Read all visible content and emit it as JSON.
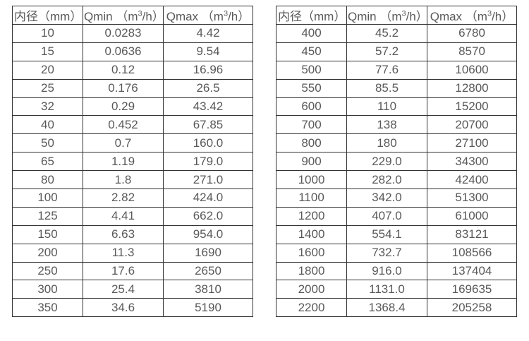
{
  "tables": [
    {
      "name": "small-diameter-flow-table",
      "headers": [
        {
          "text": "内径（mm）"
        },
        {
          "pre": "Qmin （m",
          "sup": "3",
          "post": "/h）"
        },
        {
          "pre": "Qmax （m",
          "sup": "3",
          "post": "/h）"
        }
      ],
      "rows": [
        [
          "10",
          "0.0283",
          "4.42"
        ],
        [
          "15",
          "0.0636",
          "9.54"
        ],
        [
          "20",
          "0.12",
          "16.96"
        ],
        [
          "25",
          "0.176",
          "26.5"
        ],
        [
          "32",
          "0.29",
          "43.42"
        ],
        [
          "40",
          "0.452",
          "67.85"
        ],
        [
          "50",
          "0.7",
          "160.0"
        ],
        [
          "65",
          "1.19",
          "179.0"
        ],
        [
          "80",
          "1.8",
          "271.0"
        ],
        [
          "100",
          "2.82",
          "424.0"
        ],
        [
          "125",
          "4.41",
          "662.0"
        ],
        [
          "150",
          "6.63",
          "954.0"
        ],
        [
          "200",
          "11.3",
          "1690"
        ],
        [
          "250",
          "17.6",
          "2650"
        ],
        [
          "300",
          "25.4",
          "3810"
        ],
        [
          "350",
          "34.6",
          "5190"
        ]
      ]
    },
    {
      "name": "large-diameter-flow-table",
      "headers": [
        {
          "text": "内径（mm）"
        },
        {
          "pre": "Qmin （m",
          "sup": "3",
          "post": "/h）"
        },
        {
          "pre": "Qmax （m",
          "sup": "3",
          "post": "/h）"
        }
      ],
      "rows": [
        [
          "400",
          "45.2",
          "6780"
        ],
        [
          "450",
          "57.2",
          "8570"
        ],
        [
          "500",
          "77.6",
          "10600"
        ],
        [
          "550",
          "85.5",
          "12800"
        ],
        [
          "600",
          "110",
          "15200"
        ],
        [
          "700",
          "138",
          "20700"
        ],
        [
          "800",
          "180",
          "27100"
        ],
        [
          "900",
          "229.0",
          "34300"
        ],
        [
          "1000",
          "282.0",
          "42400"
        ],
        [
          "1100",
          "342.0",
          "51300"
        ],
        [
          "1200",
          "407.0",
          "61000"
        ],
        [
          "1400",
          "554.1",
          "83121"
        ],
        [
          "1600",
          "732.7",
          "108566"
        ],
        [
          "1800",
          "916.0",
          "137404"
        ],
        [
          "2000",
          "1131.0",
          "169635"
        ],
        [
          "2200",
          "1368.4",
          "205258"
        ]
      ]
    }
  ],
  "colors": {
    "border": "#333333",
    "text": "#595959",
    "background": "#ffffff"
  },
  "column_semantics": [
    "inner-diameter-mm",
    "qmin-m3h",
    "qmax-m3h"
  ]
}
